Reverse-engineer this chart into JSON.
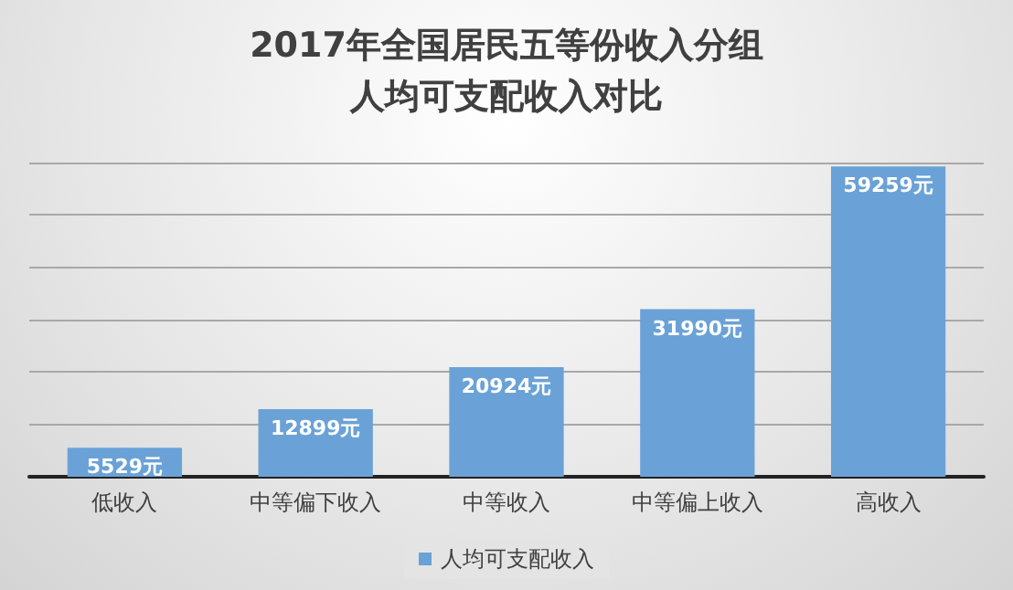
{
  "chart_data": {
    "type": "bar",
    "title": "2017年全国居民五等份收入分组",
    "subtitle": "人均可支配收入对比",
    "categories": [
      "低收入",
      "中等偏下收入",
      "中等收入",
      "中等偏上收入",
      "高收入"
    ],
    "series": [
      {
        "name": "人均可支配收入",
        "color": "#6aa2d7",
        "values": [
          5529,
          12899,
          20924,
          31990,
          59259
        ],
        "value_labels": [
          "5529元",
          "12899元",
          "20924元",
          "31990元",
          "59259元"
        ]
      }
    ],
    "tick_labels": "x",
    "grid": "y",
    "legend": "bottom"
  }
}
